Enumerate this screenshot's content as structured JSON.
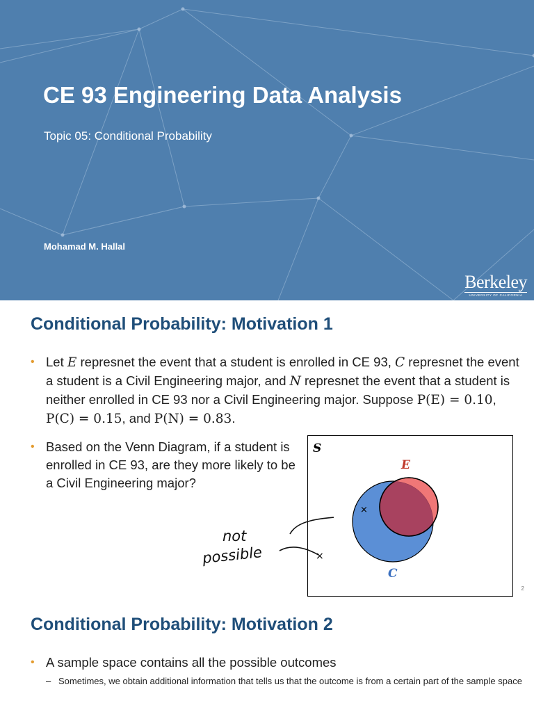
{
  "slide1": {
    "title": "CE 93 Engineering Data Analysis",
    "subtitle": "Topic 05: Conditional Probability",
    "author": "Mohamad M. Hallal",
    "logo_word": "Berkeley",
    "logo_sub": "UNIVERSITY OF CALIFORNIA",
    "background": "#4f7fae"
  },
  "slide2": {
    "title": "Conditional Probability: Motivation 1",
    "bullet1": {
      "t1": "Let ",
      "v1": "E",
      "t2": " represnet the event that a student is enrolled in CE 93, ",
      "v2": "C",
      "t3": " represnet the event a student is a Civil Engineering major, and ",
      "v3": "N",
      "t4": " represnet the event that a student is neither enrolled in CE 93 nor a Civil Engineering major. Suppose ",
      "pE": "P(E) = 0.10",
      "sep1": ", ",
      "pC": "P(C) = 0.15",
      "sep2": ", and ",
      "pN": "P(N) = 0.83",
      "end": "."
    },
    "bullet2": "Based on the Venn Diagram, if a student is enrolled in CE 93, are they more likely to be a Civil Engineering major?",
    "venn": {
      "label_s": "S",
      "label_e": "E",
      "label_c": "C",
      "color_e": "#f07777",
      "color_c": "#5b8fd6",
      "color_overlap": "#a8425f"
    },
    "annotation": {
      "line1": "not",
      "line2": "possible"
    },
    "page_number": "2"
  },
  "slide3": {
    "title": "Conditional Probability: Motivation 2",
    "bullet1": "A sample space contains all the possible outcomes",
    "sub1": "Sometimes, we obtain additional information that tells us that the outcome is from a certain part of the sample space"
  }
}
